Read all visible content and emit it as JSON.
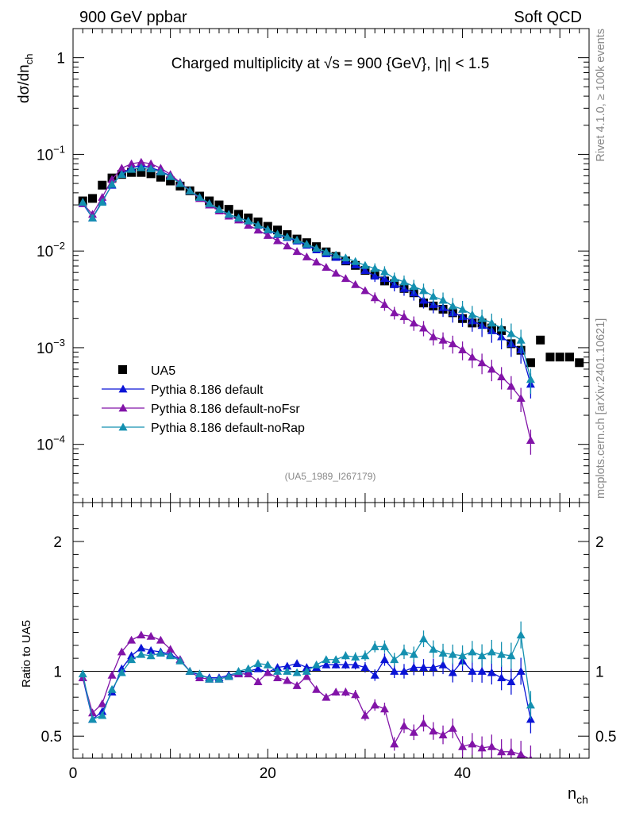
{
  "header": {
    "left": "900 GeV ppbar",
    "right": "Soft QCD"
  },
  "side_labels": {
    "rivet": "Rivet 4.1.0, ≥ 100k events",
    "mcplots": "mcplots.cern.ch [arXiv:2401.10621]"
  },
  "chart_data": {
    "type": "scatter",
    "title": "Charged multiplicity at √s = 900 {GeV}, |η| < 1.5",
    "analysis_id": "(UA5_1989_I267179)",
    "xlabel": "n",
    "xlabel_sub": "ch",
    "ylabel": "dσ/dn",
    "ylabel_sub": "ch",
    "ratio_ylabel": "Ratio to UA5",
    "xlim": [
      0,
      53
    ],
    "ylim_log": [
      2.5e-05,
      2.0
    ],
    "ratio_ylim": [
      0.33,
      2.3
    ],
    "x_ticks": [
      "0",
      "20",
      "40"
    ],
    "y_ticks": [
      {
        "base": "1",
        "exp": ""
      },
      {
        "base": "10",
        "exp": "−1"
      },
      {
        "base": "10",
        "exp": "−2"
      },
      {
        "base": "10",
        "exp": "−3"
      },
      {
        "base": "10",
        "exp": "−4"
      }
    ],
    "ratio_ticks": [
      "0.5",
      "1",
      "2"
    ],
    "legend_position": "bottom-left",
    "series": [
      {
        "name": "UA5",
        "color": "#000000",
        "marker": "square",
        "x": [
          1,
          2,
          3,
          4,
          5,
          6,
          7,
          8,
          9,
          10,
          11,
          12,
          13,
          14,
          15,
          16,
          17,
          18,
          19,
          20,
          21,
          22,
          23,
          24,
          25,
          26,
          27,
          28,
          29,
          30,
          31,
          32,
          33,
          34,
          35,
          36,
          37,
          38,
          39,
          40,
          41,
          42,
          43,
          44,
          45,
          46,
          47,
          48,
          49,
          50,
          51,
          52
        ],
        "values": [
          0.033,
          0.035,
          0.048,
          0.057,
          0.062,
          0.065,
          0.065,
          0.063,
          0.058,
          0.053,
          0.047,
          0.042,
          0.037,
          0.033,
          0.03,
          0.027,
          0.024,
          0.022,
          0.02,
          0.018,
          0.0165,
          0.0148,
          0.0133,
          0.0122,
          0.0111,
          0.0098,
          0.0088,
          0.0079,
          0.0071,
          0.0063,
          0.0057,
          0.0049,
          0.0046,
          0.0041,
          0.0037,
          0.0029,
          0.0027,
          0.0025,
          0.0023,
          0.002,
          0.0018,
          0.0018,
          0.0016,
          0.0015,
          0.0011,
          0.00094,
          0.0007,
          0.0012,
          0.0008,
          0.0008,
          0.0008,
          0.0007
        ]
      },
      {
        "name": "Pythia 8.186 default",
        "color": "#0b14d6",
        "marker": "triangle",
        "x": [
          1,
          2,
          3,
          4,
          5,
          6,
          7,
          8,
          9,
          10,
          11,
          12,
          13,
          14,
          15,
          16,
          17,
          18,
          19,
          20,
          21,
          22,
          23,
          24,
          25,
          26,
          27,
          28,
          29,
          30,
          31,
          32,
          33,
          34,
          35,
          36,
          37,
          38,
          39,
          40,
          41,
          42,
          43,
          44,
          45,
          46,
          47
        ],
        "values": [
          0.031,
          0.022,
          0.033,
          0.048,
          0.063,
          0.073,
          0.077,
          0.073,
          0.067,
          0.06,
          0.051,
          0.042,
          0.036,
          0.031,
          0.027,
          0.024,
          0.022,
          0.0205,
          0.0185,
          0.0165,
          0.0148,
          0.0138,
          0.0127,
          0.0115,
          0.0103,
          0.0094,
          0.0086,
          0.0079,
          0.0072,
          0.0063,
          0.0055,
          0.0052,
          0.0045,
          0.0041,
          0.0037,
          0.0031,
          0.0028,
          0.0026,
          0.0023,
          0.0021,
          0.0019,
          0.0017,
          0.0015,
          0.0013,
          0.0011,
          0.00095,
          0.00042
        ]
      },
      {
        "name": "Pythia 8.186 default-noFsr",
        "color": "#8214a8",
        "marker": "triangle",
        "x": [
          1,
          2,
          3,
          4,
          5,
          6,
          7,
          8,
          9,
          10,
          11,
          12,
          13,
          14,
          15,
          16,
          17,
          18,
          19,
          20,
          21,
          22,
          23,
          24,
          25,
          26,
          27,
          28,
          29,
          30,
          31,
          32,
          33,
          34,
          35,
          36,
          37,
          38,
          39,
          40,
          41,
          42,
          43,
          44,
          45,
          46,
          47
        ],
        "values": [
          0.031,
          0.024,
          0.036,
          0.055,
          0.072,
          0.08,
          0.083,
          0.08,
          0.072,
          0.062,
          0.051,
          0.042,
          0.035,
          0.03,
          0.026,
          0.023,
          0.021,
          0.0185,
          0.0165,
          0.0145,
          0.0128,
          0.0113,
          0.0099,
          0.0087,
          0.0077,
          0.0068,
          0.0059,
          0.0052,
          0.0045,
          0.0039,
          0.0033,
          0.0028,
          0.0023,
          0.0021,
          0.0018,
          0.0016,
          0.0013,
          0.0012,
          0.0011,
          0.00095,
          0.0008,
          0.0007,
          0.0006,
          0.0005,
          0.0004,
          0.0003,
          0.00011
        ]
      },
      {
        "name": "Pythia 8.186 default-noRap",
        "color": "#1490b0",
        "marker": "triangle",
        "x": [
          1,
          2,
          3,
          4,
          5,
          6,
          7,
          8,
          9,
          10,
          11,
          12,
          13,
          14,
          15,
          16,
          17,
          18,
          19,
          20,
          21,
          22,
          23,
          24,
          25,
          26,
          27,
          28,
          29,
          30,
          31,
          32,
          33,
          34,
          35,
          36,
          37,
          38,
          39,
          40,
          41,
          42,
          43,
          44,
          45,
          46,
          47
        ],
        "values": [
          0.032,
          0.022,
          0.032,
          0.049,
          0.062,
          0.07,
          0.073,
          0.071,
          0.066,
          0.059,
          0.05,
          0.042,
          0.036,
          0.031,
          0.027,
          0.024,
          0.022,
          0.0205,
          0.0186,
          0.0167,
          0.015,
          0.014,
          0.013,
          0.0118,
          0.0107,
          0.0098,
          0.0091,
          0.0085,
          0.0078,
          0.0071,
          0.0066,
          0.0061,
          0.0052,
          0.0048,
          0.0043,
          0.0039,
          0.0034,
          0.0031,
          0.0027,
          0.0025,
          0.0022,
          0.002,
          0.0018,
          0.0016,
          0.0014,
          0.0012,
          0.00047
        ]
      }
    ],
    "ratio_series": [
      {
        "name": "Pythia 8.186 default",
        "color": "#0b14d6",
        "x": [
          1,
          2,
          3,
          4,
          5,
          6,
          7,
          8,
          9,
          10,
          11,
          12,
          13,
          14,
          15,
          16,
          17,
          18,
          19,
          20,
          21,
          22,
          23,
          24,
          25,
          26,
          27,
          28,
          29,
          30,
          31,
          32,
          33,
          34,
          35,
          36,
          37,
          38,
          39,
          40,
          41,
          42,
          43,
          44,
          45,
          46,
          47
        ],
        "values": [
          0.95,
          0.63,
          0.69,
          0.84,
          1.02,
          1.12,
          1.18,
          1.16,
          1.15,
          1.13,
          1.09,
          1.0,
          0.97,
          0.95,
          0.95,
          0.97,
          0.99,
          1.0,
          1.02,
          0.99,
          1.03,
          1.04,
          1.06,
          1.03,
          1.03,
          1.05,
          1.05,
          1.05,
          1.05,
          1.03,
          0.97,
          1.09,
          1.0,
          1.0,
          1.03,
          1.03,
          1.03,
          1.05,
          0.99,
          1.08,
          1.0,
          1.0,
          0.99,
          0.95,
          0.92,
          1.0,
          0.63
        ]
      },
      {
        "name": "Pythia 8.186 default-noFsr",
        "color": "#8214a8",
        "x": [
          1,
          2,
          3,
          4,
          5,
          6,
          7,
          8,
          9,
          10,
          11,
          12,
          13,
          14,
          15,
          16,
          17,
          18,
          19,
          20,
          21,
          22,
          23,
          24,
          25,
          26,
          27,
          28,
          29,
          30,
          31,
          32,
          33,
          34,
          35,
          36,
          37,
          38,
          39,
          40,
          41,
          42,
          43,
          44,
          45,
          46,
          47
        ],
        "values": [
          0.95,
          0.68,
          0.75,
          0.97,
          1.15,
          1.24,
          1.28,
          1.27,
          1.24,
          1.17,
          1.09,
          1.0,
          0.95,
          0.94,
          0.94,
          0.96,
          0.98,
          0.98,
          0.92,
          0.99,
          0.95,
          0.93,
          0.89,
          0.96,
          0.86,
          0.8,
          0.84,
          0.84,
          0.82,
          0.66,
          0.74,
          0.71,
          0.44,
          0.58,
          0.53,
          0.6,
          0.54,
          0.51,
          0.56,
          0.42,
          0.44,
          0.41,
          0.42,
          0.38,
          0.38,
          0.36,
          0.32
        ]
      },
      {
        "name": "Pythia 8.186 default-noRap",
        "color": "#1490b0",
        "x": [
          1,
          2,
          3,
          4,
          5,
          6,
          7,
          8,
          9,
          10,
          11,
          12,
          13,
          14,
          15,
          16,
          17,
          18,
          19,
          20,
          21,
          22,
          23,
          24,
          25,
          26,
          27,
          28,
          29,
          30,
          31,
          32,
          33,
          34,
          35,
          36,
          37,
          38,
          39,
          40,
          41,
          42,
          43,
          44,
          45,
          46,
          47
        ],
        "values": [
          0.98,
          0.63,
          0.66,
          0.86,
          0.99,
          1.09,
          1.13,
          1.12,
          1.14,
          1.12,
          1.08,
          1.0,
          0.98,
          0.94,
          0.94,
          0.96,
          1.0,
          1.02,
          1.06,
          1.05,
          1.0,
          1.0,
          0.99,
          1.0,
          1.05,
          1.09,
          1.09,
          1.12,
          1.11,
          1.12,
          1.19,
          1.19,
          1.09,
          1.15,
          1.13,
          1.25,
          1.17,
          1.14,
          1.13,
          1.12,
          1.15,
          1.12,
          1.15,
          1.13,
          1.12,
          1.28,
          0.74
        ]
      }
    ]
  }
}
